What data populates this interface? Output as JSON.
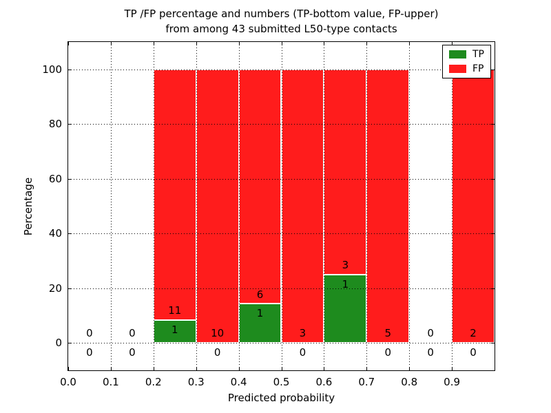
{
  "figure": {
    "title_line1": "TP /FP percentage and numbers (TP-bottom value, FP-upper)",
    "title_line2": "from among 43 submitted L50-type contacts",
    "xlabel": "Predicted probability",
    "ylabel": "Percentage"
  },
  "legend": {
    "position": "upper right",
    "entries": [
      {
        "label": "TP",
        "color": "#1e8b1e"
      },
      {
        "label": "FP",
        "color": "#ff1c1c"
      }
    ]
  },
  "chart_data": {
    "type": "bar",
    "stacked": true,
    "title": "TP /FP percentage and numbers (TP-bottom value, FP-upper) from among 43 submitted L50-type contacts",
    "xlabel": "Predicted probability",
    "ylabel": "Percentage",
    "xlim": [
      0.0,
      1.0
    ],
    "ylim": [
      -10,
      110
    ],
    "grid": "dotted",
    "legend_position": "upper right",
    "bin_width": 0.1,
    "total_submitted": 43,
    "colors": {
      "tp": "#1e8b1e",
      "fp": "#ff1c1c"
    },
    "x_ticks": [
      {
        "value": 0.0,
        "label": "0.0"
      },
      {
        "value": 0.1,
        "label": "0.1"
      },
      {
        "value": 0.2,
        "label": "0.2"
      },
      {
        "value": 0.3,
        "label": "0.3"
      },
      {
        "value": 0.4,
        "label": "0.4"
      },
      {
        "value": 0.5,
        "label": "0.5"
      },
      {
        "value": 0.6,
        "label": "0.6"
      },
      {
        "value": 0.7,
        "label": "0.7"
      },
      {
        "value": 0.8,
        "label": "0.8"
      },
      {
        "value": 0.9,
        "label": "0.9"
      }
    ],
    "y_ticks": [
      {
        "value": 0,
        "label": "0"
      },
      {
        "value": 20,
        "label": "20"
      },
      {
        "value": 40,
        "label": "40"
      },
      {
        "value": 60,
        "label": "60"
      },
      {
        "value": 80,
        "label": "80"
      },
      {
        "value": 100,
        "label": "100"
      }
    ],
    "bins": [
      {
        "x0": 0.0,
        "tp": 0,
        "fp": 0,
        "tp_pct": 0,
        "fp_top_pct": 0
      },
      {
        "x0": 0.1,
        "tp": 0,
        "fp": 0,
        "tp_pct": 0,
        "fp_top_pct": 0
      },
      {
        "x0": 0.2,
        "tp": 1,
        "fp": 11,
        "tp_pct": 8.33,
        "fp_top_pct": 100
      },
      {
        "x0": 0.3,
        "tp": 0,
        "fp": 10,
        "tp_pct": 0,
        "fp_top_pct": 100
      },
      {
        "x0": 0.4,
        "tp": 1,
        "fp": 6,
        "tp_pct": 14.29,
        "fp_top_pct": 100
      },
      {
        "x0": 0.5,
        "tp": 0,
        "fp": 3,
        "tp_pct": 0,
        "fp_top_pct": 100
      },
      {
        "x0": 0.6,
        "tp": 1,
        "fp": 3,
        "tp_pct": 25,
        "fp_top_pct": 100
      },
      {
        "x0": 0.7,
        "tp": 0,
        "fp": 5,
        "tp_pct": 0,
        "fp_top_pct": 100
      },
      {
        "x0": 0.8,
        "tp": 0,
        "fp": 0,
        "tp_pct": 0,
        "fp_top_pct": 0
      },
      {
        "x0": 0.9,
        "tp": 0,
        "fp": 2,
        "tp_pct": 0,
        "fp_top_pct": 100
      }
    ],
    "annotation_offset_units": 3.5
  }
}
